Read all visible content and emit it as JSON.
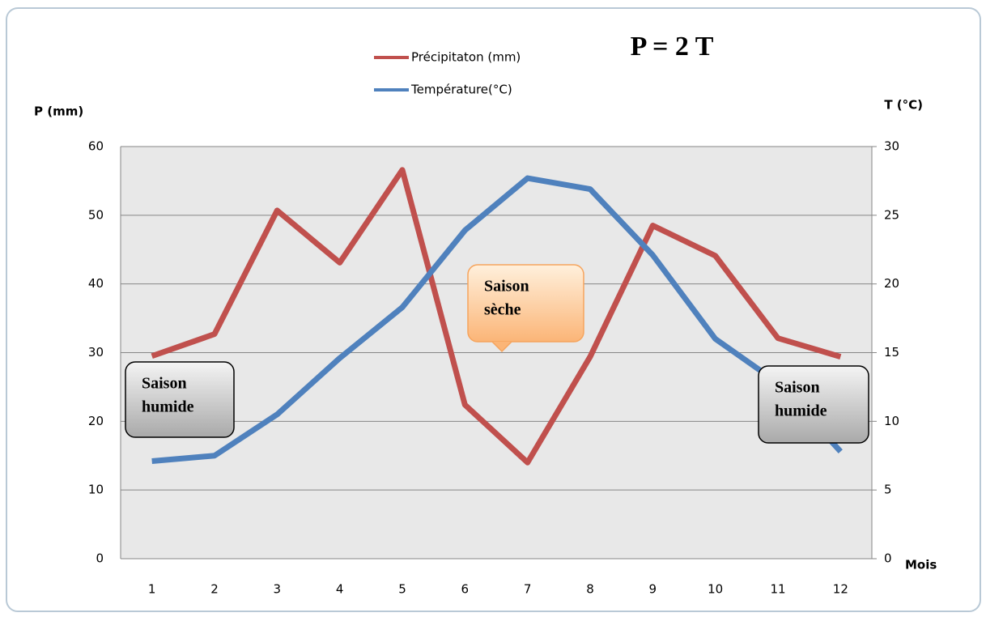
{
  "chart_data": {
    "type": "line",
    "title": "P = 2 T",
    "y_label": "P (mm)",
    "y2_label": "T (°C)",
    "x_label": "Mois",
    "categories": [
      "1",
      "2",
      "3",
      "4",
      "5",
      "6",
      "7",
      "8",
      "9",
      "10",
      "11",
      "12"
    ],
    "series": [
      {
        "name": "Précipitaton (mm)",
        "color": "#c0504d",
        "axis": "y",
        "values": [
          29.5,
          32.7,
          50.7,
          43.1,
          56.6,
          22.4,
          14.0,
          29.4,
          48.5,
          44.1,
          32.1,
          29.4
        ]
      },
      {
        "name": "Température(°C)",
        "color": "#4f81bd",
        "axis": "y2",
        "values": [
          7.1,
          7.5,
          10.5,
          14.6,
          18.3,
          23.9,
          27.7,
          26.9,
          22.1,
          16.0,
          12.8,
          7.8
        ]
      }
    ],
    "ylim": [
      0,
      60
    ],
    "yticks": [
      0,
      10,
      20,
      30,
      40,
      50,
      60
    ],
    "y2lim": [
      0,
      30
    ],
    "y2ticks": [
      0,
      5,
      10,
      15,
      20,
      25,
      30
    ],
    "grid": true,
    "annotations": [
      {
        "lines": [
          "Saison",
          "humide"
        ]
      },
      {
        "lines": [
          "Saison",
          "sèche"
        ]
      },
      {
        "lines": [
          "Saison",
          "humide"
        ]
      }
    ]
  }
}
